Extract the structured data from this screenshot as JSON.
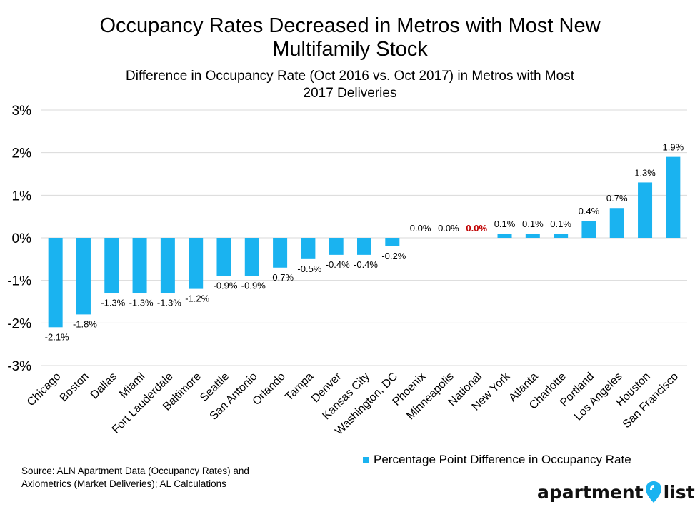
{
  "title_lines": [
    "Occupancy Rates Decreased in Metros with Most New",
    "Multifamily Stock"
  ],
  "subtitle_lines": [
    "Difference in Occupancy Rate (Oct 2016 vs. Oct 2017) in Metros with Most",
    "2017 Deliveries"
  ],
  "source_lines": [
    "Source: ALN Apartment Data (Occupancy Rates) and",
    "Axiometrics (Market Deliveries); AL Calculations"
  ],
  "logo": {
    "part1": "apartment",
    "part2": "list"
  },
  "colors": {
    "bar": "#1ab3f0",
    "highlight_label": "#c00000",
    "grid": "#d9d9d9"
  },
  "chart_data": {
    "type": "bar",
    "title": "Occupancy Rates Decreased in Metros with Most New Multifamily Stock",
    "subtitle": "Difference in Occupancy Rate (Oct 2016 vs. Oct 2017) in Metros with Most 2017 Deliveries",
    "categories": [
      "Chicago",
      "Boston",
      "Dallas",
      "Miami",
      "Fort Lauderdale",
      "Baltimore",
      "Seattle",
      "San Antonio",
      "Orlando",
      "Tampa",
      "Denver",
      "Kansas City",
      "Washington, DC",
      "Phoenix",
      "Minneapolis",
      "National",
      "New York",
      "Atlanta",
      "Charlotte",
      "Portland",
      "Los Angeles",
      "Houston",
      "San Francisco"
    ],
    "series": [
      {
        "name": "Percentage Point Difference in Occupancy Rate",
        "values": [
          -2.1,
          -1.8,
          -1.3,
          -1.3,
          -1.3,
          -1.2,
          -0.9,
          -0.9,
          -0.7,
          -0.5,
          -0.4,
          -0.4,
          -0.2,
          0.0,
          0.0,
          0.0,
          0.1,
          0.1,
          0.1,
          0.4,
          0.7,
          1.3,
          1.9
        ],
        "labels": [
          "-2.1%",
          "-1.8%",
          "-1.3%",
          "-1.3%",
          "-1.3%",
          "-1.2%",
          "-0.9%",
          "-0.9%",
          "-0.7%",
          "-0.5%",
          "-0.4%",
          "-0.4%",
          "-0.2%",
          "0.0%",
          "0.0%",
          "0.0%",
          "0.1%",
          "0.1%",
          "0.1%",
          "0.4%",
          "0.7%",
          "1.3%",
          "1.9%"
        ]
      }
    ],
    "highlight_category": "National",
    "yticks": [
      3,
      2,
      1,
      0,
      -1,
      -2,
      -3
    ],
    "ytick_labels": [
      "3%",
      "2%",
      "1%",
      "0%",
      "-1%",
      "-2%",
      "-3%"
    ],
    "ylim": [
      -3,
      3
    ],
    "grid": true,
    "legend_position": "bottom-right"
  }
}
